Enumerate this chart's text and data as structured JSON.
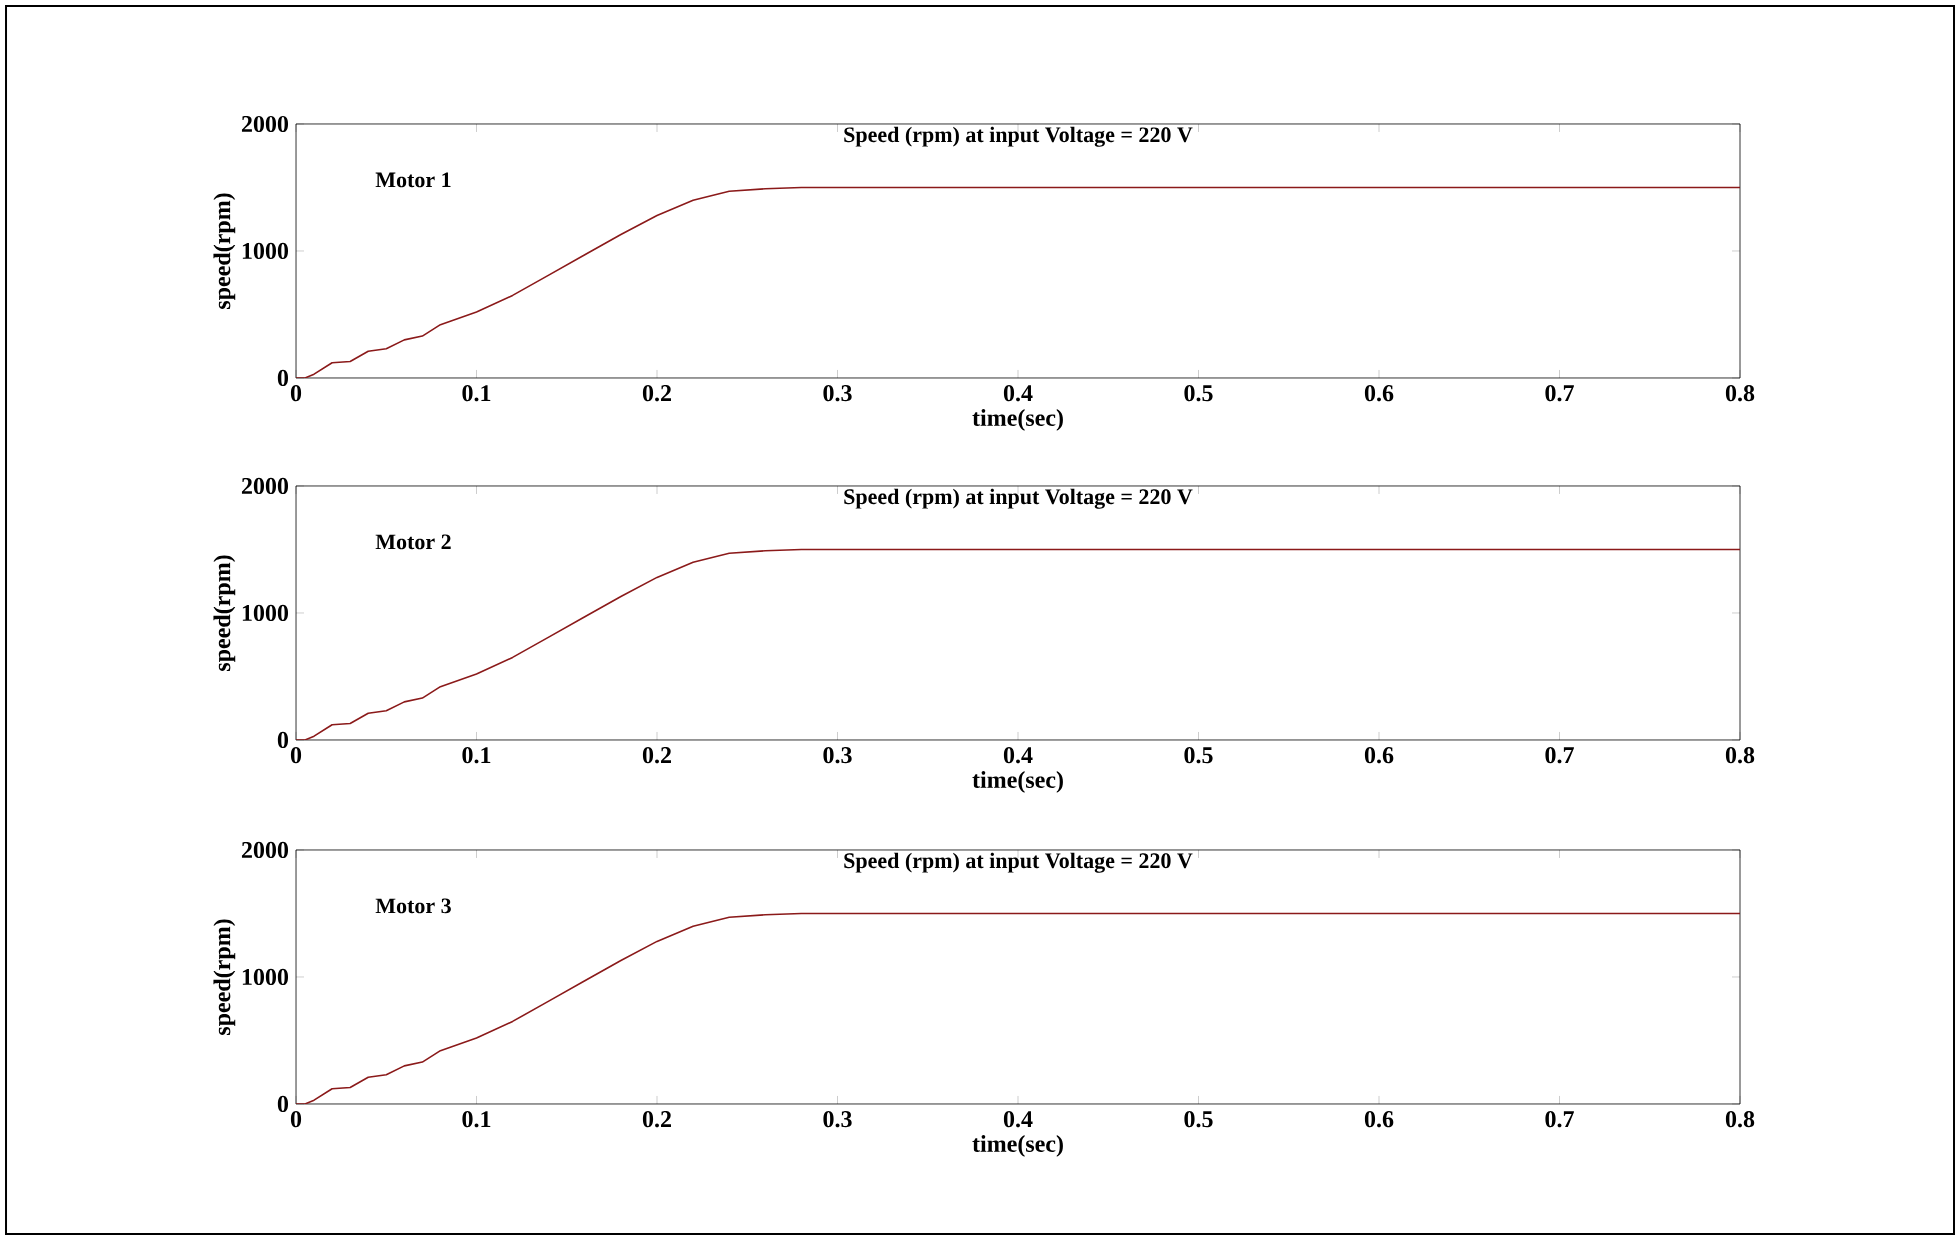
{
  "chart_data": [
    {
      "type": "line",
      "title": "Speed (rpm) at input Voltage = 220 V",
      "xlabel": "time(sec)",
      "ylabel": "speed(rpm)",
      "annotations": [
        "Motor 1"
      ],
      "x": [
        0,
        0.005,
        0.01,
        0.02,
        0.03,
        0.04,
        0.05,
        0.06,
        0.07,
        0.08,
        0.1,
        0.12,
        0.14,
        0.16,
        0.18,
        0.2,
        0.22,
        0.24,
        0.26,
        0.28,
        0.3,
        0.32,
        0.4,
        0.6,
        0.8
      ],
      "values": [
        0,
        0,
        30,
        120,
        130,
        210,
        230,
        300,
        330,
        420,
        520,
        650,
        810,
        970,
        1130,
        1280,
        1400,
        1470,
        1490,
        1500,
        1500,
        1500,
        1500,
        1500,
        1500
      ],
      "color": "#8b1a1a",
      "xlim": [
        0,
        0.8
      ],
      "ylim": [
        0,
        2000
      ],
      "xticks": [
        0,
        0.1,
        0.2,
        0.3,
        0.4,
        0.5,
        0.6,
        0.7,
        0.8
      ],
      "yticks": [
        0,
        1000,
        2000
      ]
    },
    {
      "type": "line",
      "title": "Speed (rpm) at input Voltage = 220 V",
      "xlabel": "time(sec)",
      "ylabel": "speed(rpm)",
      "annotations": [
        "Motor 2"
      ],
      "x": [
        0,
        0.005,
        0.01,
        0.02,
        0.03,
        0.04,
        0.05,
        0.06,
        0.07,
        0.08,
        0.1,
        0.12,
        0.14,
        0.16,
        0.18,
        0.2,
        0.22,
        0.24,
        0.26,
        0.28,
        0.3,
        0.32,
        0.4,
        0.6,
        0.8
      ],
      "values": [
        0,
        0,
        30,
        120,
        130,
        210,
        230,
        300,
        330,
        420,
        520,
        650,
        810,
        970,
        1130,
        1280,
        1400,
        1470,
        1490,
        1500,
        1500,
        1500,
        1500,
        1500,
        1500
      ],
      "color": "#8b1a1a",
      "xlim": [
        0,
        0.8
      ],
      "ylim": [
        0,
        2000
      ],
      "xticks": [
        0,
        0.1,
        0.2,
        0.3,
        0.4,
        0.5,
        0.6,
        0.7,
        0.8
      ],
      "yticks": [
        0,
        1000,
        2000
      ]
    },
    {
      "type": "line",
      "title": "Speed (rpm) at input Voltage = 220 V",
      "xlabel": "time(sec)",
      "ylabel": "speed(rpm)",
      "annotations": [
        "Motor 3"
      ],
      "x": [
        0,
        0.005,
        0.01,
        0.02,
        0.03,
        0.04,
        0.05,
        0.06,
        0.07,
        0.08,
        0.1,
        0.12,
        0.14,
        0.16,
        0.18,
        0.2,
        0.22,
        0.24,
        0.26,
        0.28,
        0.3,
        0.32,
        0.4,
        0.6,
        0.8
      ],
      "values": [
        0,
        0,
        30,
        120,
        130,
        210,
        230,
        300,
        330,
        420,
        520,
        650,
        810,
        970,
        1130,
        1280,
        1400,
        1470,
        1490,
        1500,
        1500,
        1500,
        1500,
        1500,
        1500
      ],
      "color": "#8b1a1a",
      "xlim": [
        0,
        0.8
      ],
      "ylim": [
        0,
        2000
      ],
      "xticks": [
        0,
        0.1,
        0.2,
        0.3,
        0.4,
        0.5,
        0.6,
        0.7,
        0.8
      ],
      "yticks": [
        0,
        1000,
        2000
      ]
    }
  ]
}
